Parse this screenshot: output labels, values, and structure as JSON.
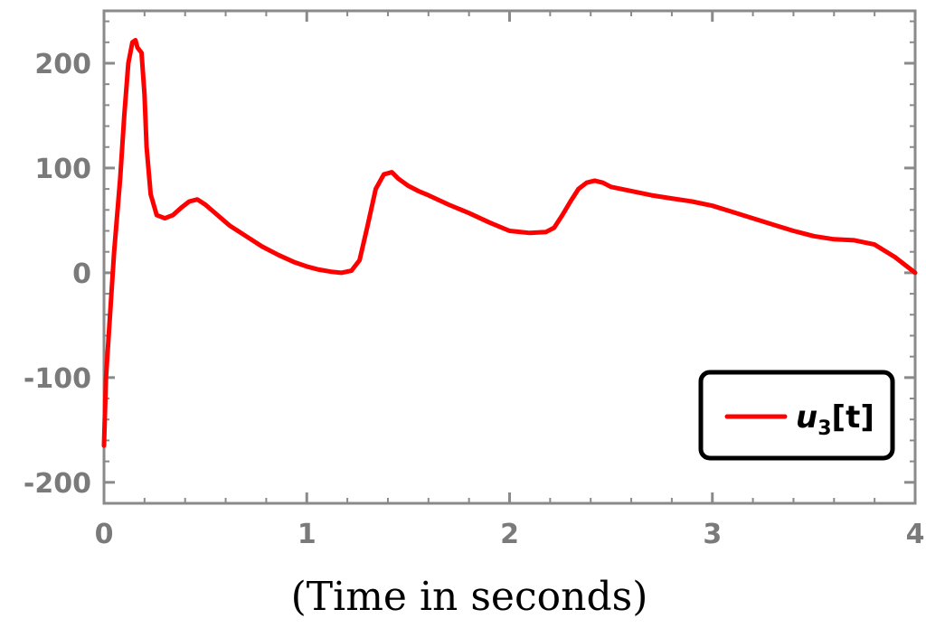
{
  "colors": {
    "series": "#ff0000",
    "frame": "#8a8a8a",
    "ticks": "#7a7a7a",
    "legend_border": "#000000"
  },
  "chart_data": {
    "type": "line",
    "title": "",
    "xlabel": "(Time in seconds)",
    "ylabel": "",
    "xlim": [
      0,
      4
    ],
    "ylim": [
      -220,
      250
    ],
    "xticks": [
      0,
      1,
      2,
      3,
      4
    ],
    "xtick_labels": [
      "0",
      "1",
      "2",
      "3",
      "4"
    ],
    "yticks": [
      -200,
      -100,
      0,
      100,
      200
    ],
    "ytick_labels": [
      "-200",
      "-100",
      "0",
      "100",
      "200"
    ],
    "grid": false,
    "legend_position": "bottom-right",
    "series": [
      {
        "name": "u3[t]",
        "legend_base": "u",
        "legend_sub": "3",
        "legend_suffix": "[t]",
        "color": "#ff0000",
        "x": [
          0.0,
          0.01,
          0.03,
          0.05,
          0.08,
          0.1,
          0.12,
          0.14,
          0.155,
          0.165,
          0.185,
          0.2,
          0.21,
          0.23,
          0.26,
          0.3,
          0.34,
          0.38,
          0.42,
          0.46,
          0.5,
          0.56,
          0.62,
          0.7,
          0.78,
          0.86,
          0.94,
          1.0,
          1.06,
          1.12,
          1.17,
          1.22,
          1.26,
          1.3,
          1.34,
          1.38,
          1.42,
          1.45,
          1.5,
          1.55,
          1.6,
          1.7,
          1.8,
          1.9,
          2.0,
          2.1,
          2.18,
          2.22,
          2.26,
          2.3,
          2.34,
          2.38,
          2.42,
          2.46,
          2.5,
          2.6,
          2.7,
          2.8,
          2.9,
          3.0,
          3.1,
          3.2,
          3.3,
          3.4,
          3.5,
          3.6,
          3.7,
          3.8,
          3.9,
          4.0
        ],
        "y": [
          -165,
          -100,
          -40,
          20,
          90,
          150,
          200,
          220,
          222,
          215,
          210,
          170,
          120,
          75,
          55,
          52,
          55,
          62,
          68,
          70,
          65,
          55,
          45,
          35,
          25,
          17,
          10,
          6,
          3,
          1,
          0,
          2,
          12,
          45,
          80,
          94,
          96,
          90,
          83,
          78,
          74,
          65,
          57,
          48,
          40,
          38,
          39,
          43,
          55,
          68,
          80,
          86,
          88,
          86,
          82,
          78,
          74,
          71,
          68,
          64,
          58,
          52,
          46,
          40,
          35,
          32,
          31,
          27,
          15,
          0
        ]
      }
    ]
  }
}
